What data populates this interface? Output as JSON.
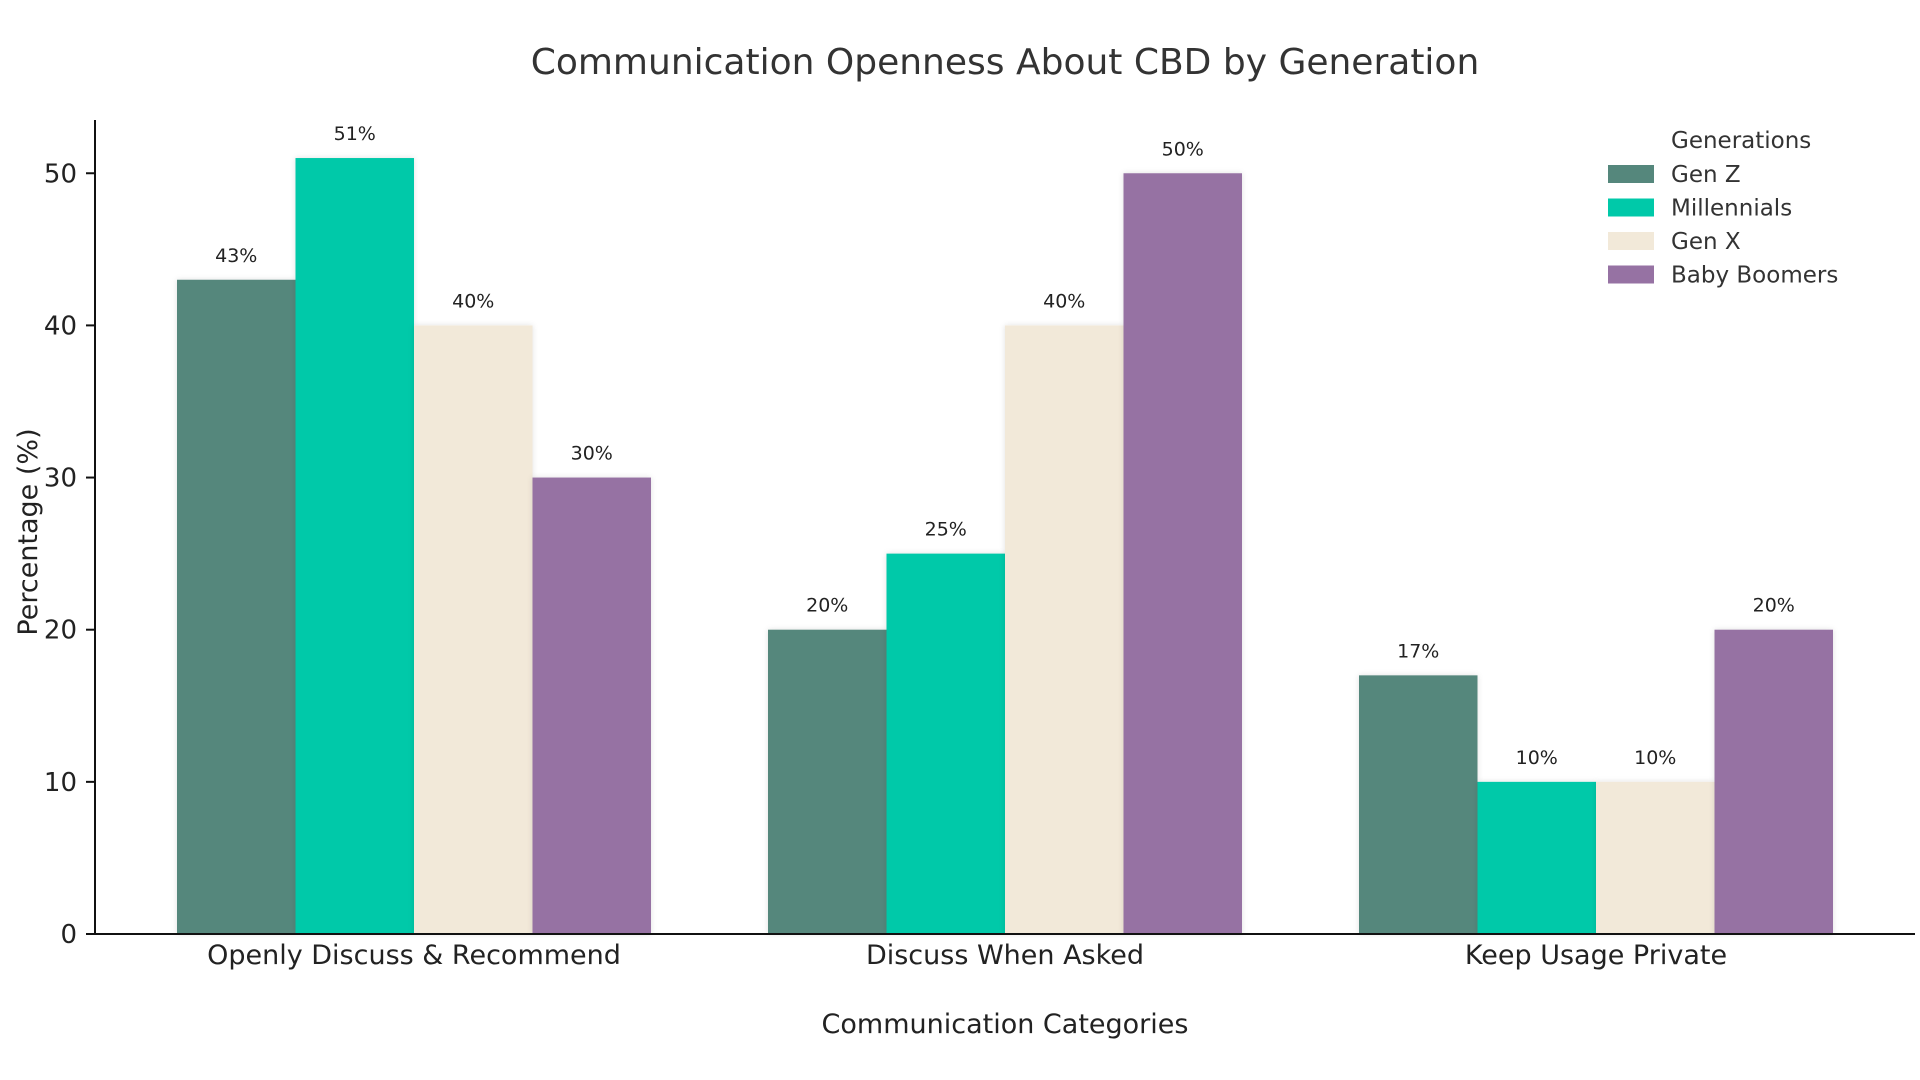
{
  "chart_data": {
    "type": "bar",
    "title": "Communication Openness About CBD by Generation",
    "xlabel": "Communication Categories",
    "ylabel": "Percentage (%)",
    "categories": [
      "Openly Discuss & Recommend",
      "Discuss When Asked",
      "Keep Usage Private"
    ],
    "series": [
      {
        "name": "Gen Z",
        "color": "#55877c",
        "values": [
          43,
          20,
          17
        ]
      },
      {
        "name": "Millennials",
        "color": "#00c9a9",
        "values": [
          51,
          25,
          10
        ]
      },
      {
        "name": "Gen X",
        "color": "#f2e9d9",
        "values": [
          40,
          40,
          10
        ]
      },
      {
        "name": "Baby Boomers",
        "color": "#9672a3",
        "values": [
          30,
          50,
          20
        ]
      }
    ],
    "value_label_suffix": "%",
    "ylim": [
      0,
      53.5
    ],
    "yticks": [
      0,
      10,
      20,
      30,
      40,
      50
    ],
    "legend": {
      "title": "Generations",
      "position": "top-right"
    },
    "grid": false
  }
}
